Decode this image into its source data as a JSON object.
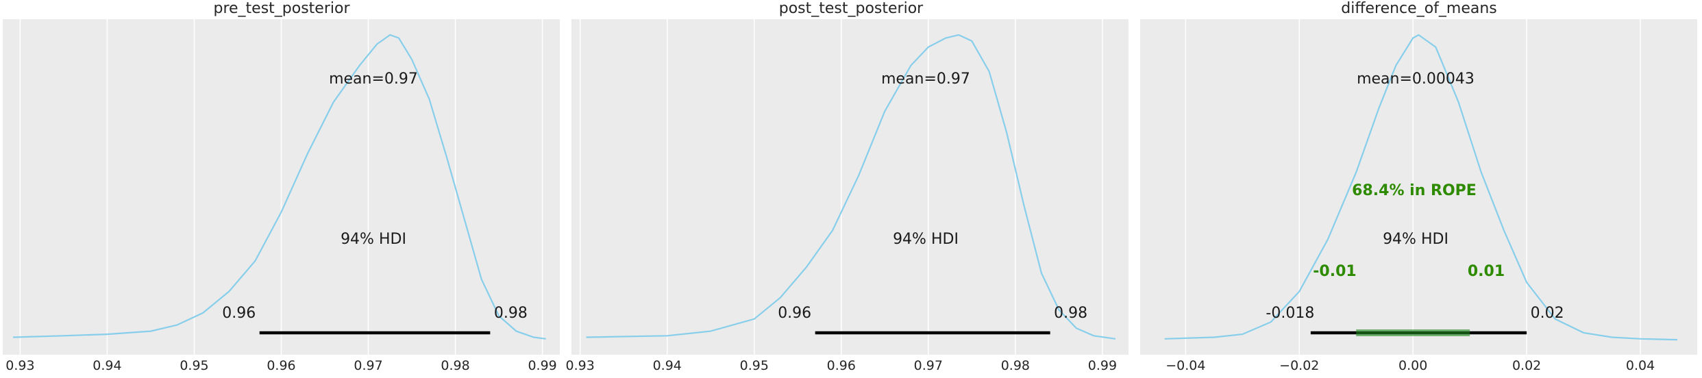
{
  "chart_data": [
    {
      "type": "line",
      "title": "pre_test_posterior",
      "xlim": [
        0.928,
        0.992
      ],
      "xticks": [
        0.93,
        0.94,
        0.95,
        0.96,
        0.97,
        0.98,
        0.99
      ],
      "xtick_labels": [
        "0.93",
        "0.94",
        "0.95",
        "0.96",
        "0.97",
        "0.98",
        "0.99"
      ],
      "grid": true,
      "colors": {
        "curve": "#87ceeb",
        "panel": "#ebebeb",
        "hdi": "#000000"
      },
      "density": {
        "x": [
          0.9292,
          0.935,
          0.94,
          0.945,
          0.948,
          0.951,
          0.954,
          0.957,
          0.96,
          0.963,
          0.966,
          0.969,
          0.971,
          0.9725,
          0.9735,
          0.975,
          0.977,
          0.979,
          0.981,
          0.983,
          0.985,
          0.987,
          0.989,
          0.9904
        ],
        "y": [
          0.01,
          0.015,
          0.02,
          0.03,
          0.05,
          0.09,
          0.16,
          0.26,
          0.42,
          0.61,
          0.78,
          0.9,
          0.97,
          1.0,
          0.99,
          0.92,
          0.79,
          0.6,
          0.4,
          0.2,
          0.08,
          0.03,
          0.01,
          0.005
        ]
      },
      "mean_label": "mean=0.97",
      "hdi_label": "94% HDI",
      "hdi": [
        0.9575,
        0.984
      ],
      "hdi_low_label": "0.96",
      "hdi_high_label": "0.98"
    },
    {
      "type": "line",
      "title": "post_test_posterior",
      "xlim": [
        0.929,
        0.993
      ],
      "xticks": [
        0.93,
        0.94,
        0.95,
        0.96,
        0.97,
        0.98,
        0.99
      ],
      "xtick_labels": [
        "0.93",
        "0.94",
        "0.95",
        "0.96",
        "0.97",
        "0.98",
        "0.99"
      ],
      "grid": true,
      "colors": {
        "curve": "#87ceeb",
        "panel": "#ebebeb",
        "hdi": "#000000"
      },
      "density": {
        "x": [
          0.9307,
          0.94,
          0.945,
          0.95,
          0.953,
          0.956,
          0.959,
          0.962,
          0.965,
          0.968,
          0.97,
          0.972,
          0.9735,
          0.975,
          0.977,
          0.979,
          0.981,
          0.983,
          0.985,
          0.987,
          0.989,
          0.9915
        ],
        "y": [
          0.01,
          0.015,
          0.03,
          0.07,
          0.14,
          0.24,
          0.36,
          0.54,
          0.75,
          0.9,
          0.96,
          0.99,
          1.0,
          0.98,
          0.88,
          0.68,
          0.44,
          0.22,
          0.1,
          0.04,
          0.015,
          0.005
        ]
      },
      "mean_label": "mean=0.97",
      "hdi_label": "94% HDI",
      "hdi": [
        0.957,
        0.984
      ],
      "hdi_low_label": "0.96",
      "hdi_high_label": "0.98"
    },
    {
      "type": "line",
      "title": "difference_of_means",
      "xlim": [
        -0.048,
        0.05
      ],
      "xticks": [
        -0.04,
        -0.02,
        0.0,
        0.02,
        0.04
      ],
      "xtick_labels": [
        "−0.04",
        "−0.02",
        "0.00",
        "0.02",
        "0.04"
      ],
      "grid": true,
      "colors": {
        "curve": "#87ceeb",
        "panel": "#ebebeb",
        "hdi": "#000000",
        "rope": "#228b22",
        "rope_text": "#2e8b00"
      },
      "density": {
        "x": [
          -0.0437,
          -0.035,
          -0.03,
          -0.025,
          -0.02,
          -0.015,
          -0.01,
          -0.006,
          -0.003,
          0.0,
          0.001,
          0.004,
          0.008,
          0.012,
          0.016,
          0.02,
          0.025,
          0.03,
          0.035,
          0.04,
          0.0465
        ],
        "y": [
          0.005,
          0.01,
          0.02,
          0.06,
          0.16,
          0.33,
          0.55,
          0.76,
          0.9,
          0.99,
          1.0,
          0.96,
          0.78,
          0.55,
          0.36,
          0.19,
          0.07,
          0.025,
          0.01,
          0.005,
          0.002
        ]
      },
      "mean_label": "mean=0.00043",
      "hdi_label": "94% HDI",
      "hdi": [
        -0.018,
        0.02
      ],
      "hdi_low_label": "-0.018",
      "hdi_high_label": "0.02",
      "rope": [
        -0.01,
        0.01
      ],
      "rope_label": "68.4% in ROPE",
      "rope_low_label": "-0.01",
      "rope_high_label": "0.01"
    }
  ]
}
